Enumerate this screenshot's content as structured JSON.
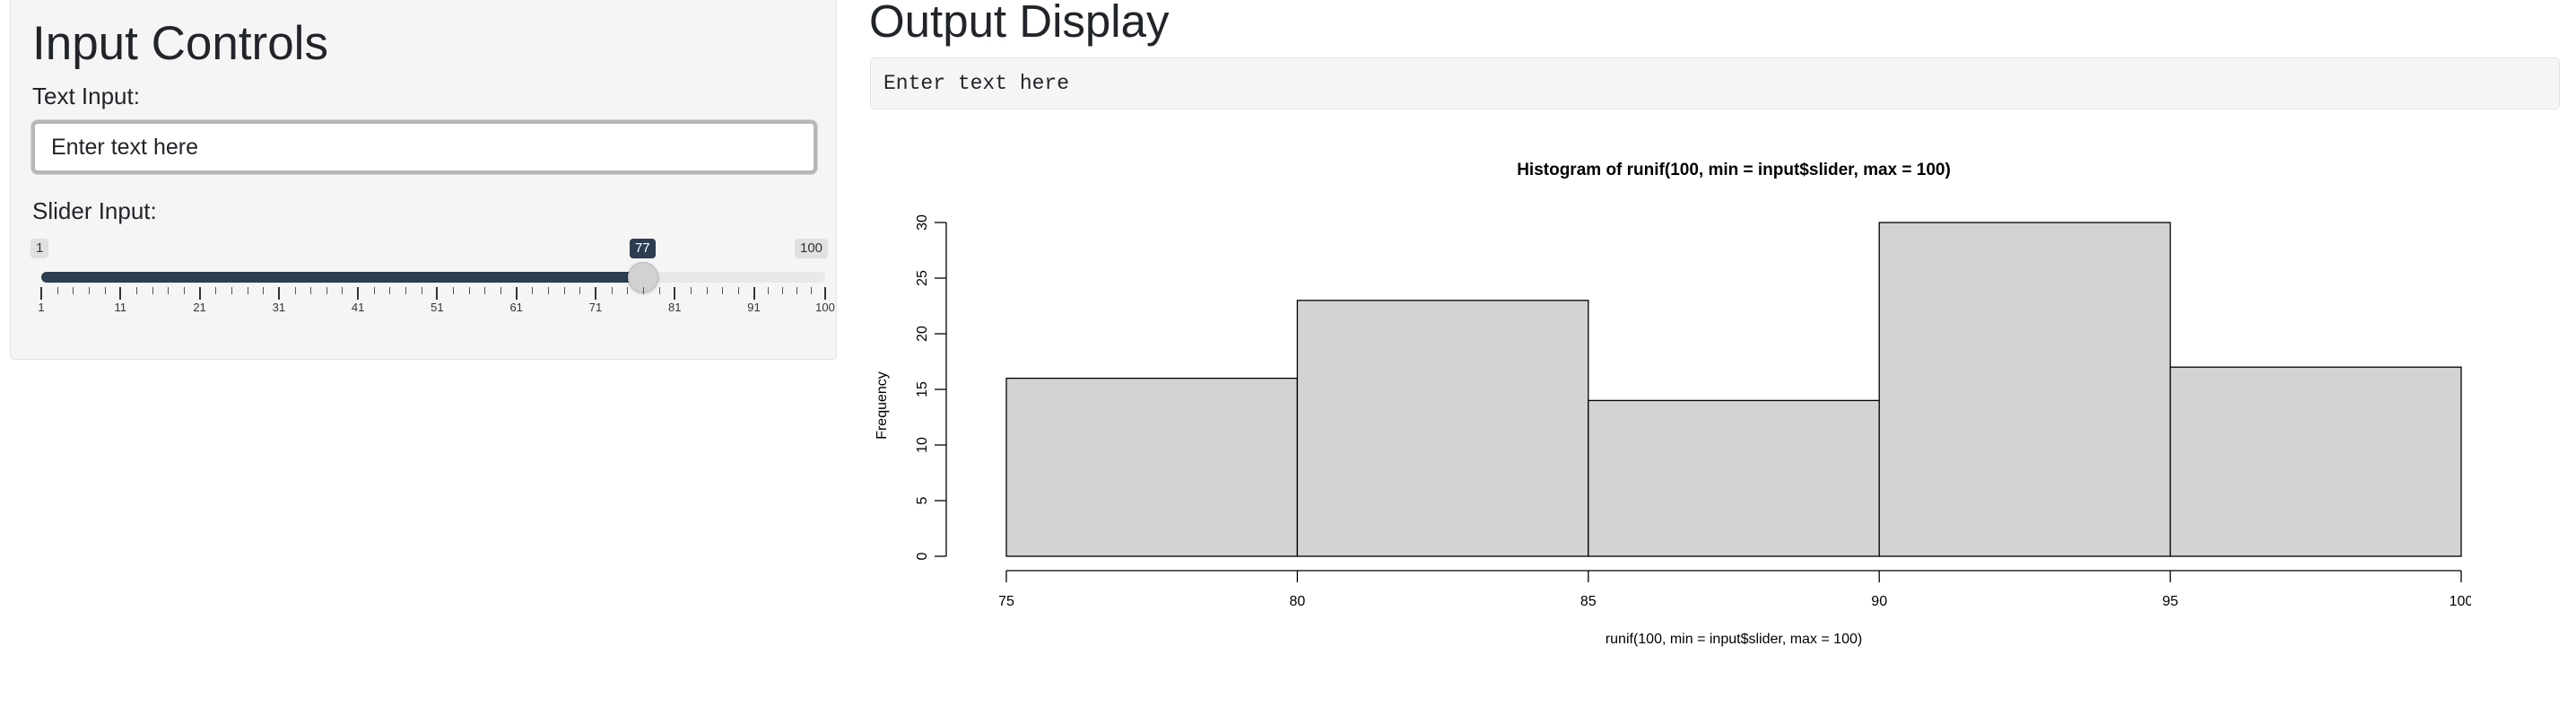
{
  "sidebar": {
    "title": "Input Controls",
    "text_input": {
      "label": "Text Input:",
      "value": "Enter text here"
    },
    "slider": {
      "label": "Slider Input:",
      "min": 1,
      "max": 100,
      "value": 77,
      "min_label": "1",
      "max_label": "100",
      "value_label": "77",
      "tick_labels": [
        "1",
        "11",
        "21",
        "31",
        "41",
        "51",
        "61",
        "71",
        "81",
        "91",
        "100"
      ]
    }
  },
  "main": {
    "title": "Output Display",
    "verbatim_text": "Enter text here"
  },
  "colors": {
    "accent": "#2c3e50",
    "panel_bg": "#f5f5f5",
    "bar_fill": "#d3d3d3"
  },
  "chart_data": {
    "type": "bar",
    "title": "Histogram of runif(100, min = input$slider, max = 100)",
    "xlabel": "runif(100, min = input$slider, max = 100)",
    "ylabel": "Frequency",
    "bins": [
      [
        75,
        80
      ],
      [
        80,
        85
      ],
      [
        85,
        90
      ],
      [
        90,
        95
      ],
      [
        95,
        100
      ]
    ],
    "values": [
      16,
      23,
      14,
      30,
      17
    ],
    "xlim": [
      75,
      100
    ],
    "ylim": [
      0,
      30
    ],
    "x_ticks": [
      75,
      80,
      85,
      90,
      95,
      100
    ],
    "y_ticks": [
      0,
      5,
      10,
      15,
      20,
      25,
      30
    ],
    "grid": false,
    "legend": "none"
  }
}
